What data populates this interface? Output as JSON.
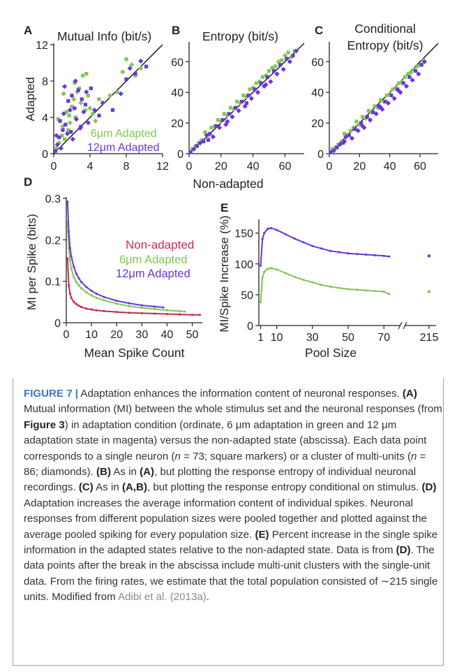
{
  "chart_data": [
    {
      "id": "A",
      "type": "scatter",
      "panel_label": "A",
      "title": "Mutual Info (bit/s)",
      "ylabel": "Adapted",
      "xlim": [
        0,
        12
      ],
      "ylim": [
        0,
        12
      ],
      "xticks": [
        "0",
        "4",
        "8",
        "12"
      ],
      "yticks": [
        "0",
        "4",
        "8",
        "12"
      ],
      "legend": [
        "6μm Adapted",
        "12μm Adapted"
      ],
      "legend_position": "bottom-right",
      "identity_line": true,
      "series": [
        {
          "name": "6μm Adapted",
          "color": "#7ec850",
          "x": [
            0.3,
            0.6,
            0.9,
            1.0,
            1.2,
            1.4,
            1.6,
            1.8,
            2.0,
            2.2,
            2.4,
            2.6,
            2.8,
            3.0,
            3.2,
            3.5,
            3.8,
            4.0,
            4.3,
            4.6,
            5.0,
            6.2,
            7.0,
            7.6,
            8.0,
            8.6,
            9.0,
            9.6,
            0.5,
            1.1,
            1.7,
            2.3,
            3.6
          ],
          "y": [
            0.6,
            1.2,
            2.0,
            3.0,
            1.6,
            4.6,
            2.6,
            3.4,
            5.2,
            6.0,
            4.0,
            6.8,
            7.2,
            5.6,
            8.6,
            4.8,
            6.4,
            5.0,
            4.4,
            3.6,
            6.0,
            6.4,
            6.8,
            9.0,
            10.4,
            9.8,
            8.6,
            9.4,
            3.8,
            6.6,
            4.2,
            7.8,
            8.8
          ]
        },
        {
          "name": "12μm Adapted",
          "color": "#6a35e0",
          "x": [
            0.2,
            0.4,
            0.6,
            0.8,
            1.0,
            1.1,
            1.3,
            1.5,
            1.6,
            1.8,
            2.0,
            2.1,
            2.3,
            2.5,
            2.7,
            2.9,
            3.1,
            3.3,
            3.5,
            3.8,
            4.1,
            4.5,
            5.0,
            5.4,
            6.5,
            7.4,
            8.0,
            8.4,
            9.0,
            9.6,
            10.2,
            0.3,
            0.7,
            1.2,
            1.9,
            2.4,
            3.0,
            3.6
          ],
          "y": [
            0.3,
            1.0,
            1.8,
            0.6,
            2.6,
            4.4,
            3.2,
            2.2,
            5.8,
            4.8,
            6.4,
            1.6,
            5.0,
            3.8,
            7.0,
            2.8,
            6.0,
            4.6,
            5.4,
            3.4,
            7.2,
            4.8,
            4.2,
            5.6,
            4.8,
            6.6,
            8.2,
            9.4,
            8.8,
            10.2,
            9.6,
            2.0,
            3.6,
            7.4,
            2.4,
            8.0,
            3.0,
            6.8
          ]
        }
      ]
    },
    {
      "id": "B",
      "type": "scatter",
      "panel_label": "B",
      "title": "Entropy (bit/s)",
      "xlabel": "Non-adapted",
      "xlim": [
        0,
        72
      ],
      "ylim": [
        0,
        72
      ],
      "xticks": [
        "0",
        "20",
        "40",
        "60"
      ],
      "yticks": [
        "0",
        "20",
        "40",
        "60"
      ],
      "identity_line": true,
      "series": [
        {
          "name": "6μm Adapted",
          "color": "#7ec850",
          "x": [
            2,
            4,
            6,
            8,
            10,
            12,
            14,
            16,
            18,
            20,
            22,
            24,
            26,
            28,
            30,
            32,
            34,
            36,
            38,
            40,
            42,
            44,
            46,
            48,
            50,
            52,
            54,
            56,
            58,
            60,
            62,
            64,
            66
          ],
          "y": [
            3,
            5,
            7,
            9,
            14,
            12,
            17,
            18,
            22,
            21,
            26,
            25,
            30,
            29,
            34,
            33,
            38,
            37,
            42,
            43,
            46,
            47,
            50,
            51,
            54,
            56,
            57,
            60,
            61,
            64,
            66,
            63,
            67
          ]
        },
        {
          "name": "12μm Adapted",
          "color": "#6a35e0",
          "x": [
            1,
            3,
            5,
            7,
            9,
            11,
            13,
            15,
            17,
            19,
            21,
            23,
            25,
            27,
            29,
            31,
            33,
            35,
            37,
            39,
            41,
            43,
            45,
            47,
            49,
            51,
            53,
            55,
            57,
            59,
            61,
            63,
            65,
            67,
            12,
            24,
            36,
            48
          ],
          "y": [
            1,
            3,
            5,
            7,
            8,
            12,
            13,
            11,
            18,
            17,
            22,
            19,
            26,
            24,
            30,
            28,
            34,
            31,
            38,
            36,
            42,
            40,
            46,
            44,
            50,
            47,
            54,
            52,
            58,
            55,
            62,
            60,
            64,
            67,
            9,
            21,
            33,
            45
          ]
        }
      ]
    },
    {
      "id": "C",
      "type": "scatter",
      "panel_label": "C",
      "title": "Conditional Entropy (bit/s)",
      "xlim": [
        0,
        72
      ],
      "ylim": [
        0,
        72
      ],
      "xticks": [
        "0",
        "20",
        "40",
        "60"
      ],
      "yticks": [
        "0",
        "20",
        "40",
        "60"
      ],
      "identity_line": true,
      "series": [
        {
          "name": "6μm Adapted",
          "color": "#7ec850",
          "x": [
            2,
            4,
            6,
            8,
            10,
            12,
            14,
            16,
            18,
            20,
            22,
            24,
            26,
            28,
            30,
            32,
            34,
            36,
            38,
            40,
            42,
            44,
            46,
            48,
            50,
            52,
            54,
            56,
            58,
            60,
            62
          ],
          "y": [
            3,
            4,
            6,
            8,
            13,
            12,
            15,
            17,
            21,
            19,
            24,
            23,
            28,
            27,
            31,
            30,
            35,
            34,
            38,
            39,
            42,
            43,
            46,
            47,
            50,
            52,
            53,
            55,
            57,
            58,
            61
          ]
        },
        {
          "name": "12μm Adapted",
          "color": "#6a35e0",
          "x": [
            1,
            3,
            5,
            7,
            9,
            11,
            13,
            15,
            17,
            19,
            21,
            23,
            25,
            27,
            29,
            31,
            33,
            35,
            37,
            39,
            41,
            43,
            45,
            47,
            49,
            51,
            53,
            55,
            57,
            59,
            61,
            63,
            10,
            22,
            34,
            46
          ],
          "y": [
            1,
            2,
            4,
            6,
            7,
            11,
            12,
            10,
            16,
            15,
            20,
            17,
            24,
            22,
            27,
            26,
            31,
            29,
            34,
            33,
            38,
            36,
            42,
            40,
            46,
            44,
            50,
            48,
            54,
            52,
            58,
            60,
            8,
            18,
            30,
            41
          ]
        }
      ]
    },
    {
      "id": "D",
      "type": "line",
      "panel_label": "D",
      "xlabel": "Mean Spike Count",
      "ylabel": "MI per Spike (bits)",
      "xlim": [
        0,
        54
      ],
      "ylim": [
        0,
        0.3
      ],
      "xticks": [
        "0",
        "10",
        "20",
        "30",
        "40",
        "50"
      ],
      "yticks": [
        "0",
        "0.1",
        "0.2",
        "0.3"
      ],
      "legend": [
        "Non-adapted",
        "6μm Adapted",
        "12μm Adapted"
      ],
      "legend_position": "right",
      "series": [
        {
          "name": "Non-adapted",
          "color": "#cc2a52",
          "x": [
            0.5,
            1,
            1.5,
            2,
            3,
            4,
            5,
            6,
            8,
            10,
            12,
            15,
            20,
            25,
            30,
            35,
            40,
            45,
            50,
            53
          ],
          "y": [
            0.155,
            0.09,
            0.07,
            0.06,
            0.05,
            0.045,
            0.041,
            0.038,
            0.034,
            0.032,
            0.03,
            0.028,
            0.026,
            0.024,
            0.023,
            0.022,
            0.021,
            0.02,
            0.019,
            0.019
          ]
        },
        {
          "name": "6μm Adapted",
          "color": "#7ec850",
          "x": [
            0.5,
            1,
            1.5,
            2,
            3,
            4,
            5,
            6,
            8,
            10,
            12,
            15,
            20,
            25,
            30,
            35,
            40,
            45,
            47
          ],
          "y": [
            0.245,
            0.18,
            0.15,
            0.13,
            0.11,
            0.098,
            0.09,
            0.083,
            0.073,
            0.066,
            0.06,
            0.054,
            0.046,
            0.04,
            0.036,
            0.033,
            0.03,
            0.028,
            0.027
          ]
        },
        {
          "name": "12μm Adapted",
          "color": "#6a35e0",
          "x": [
            0.5,
            1,
            1.5,
            2,
            3,
            4,
            5,
            6,
            8,
            10,
            12,
            15,
            20,
            25,
            30,
            35,
            38.5
          ],
          "y": [
            0.292,
            0.22,
            0.18,
            0.16,
            0.135,
            0.118,
            0.107,
            0.098,
            0.086,
            0.077,
            0.07,
            0.062,
            0.053,
            0.047,
            0.042,
            0.039,
            0.037
          ]
        }
      ]
    },
    {
      "id": "E",
      "type": "line",
      "panel_label": "E",
      "xlabel": "Pool Size",
      "ylabel": "MI/Spike Increase (%)",
      "xlim": [
        0,
        75
      ],
      "ylim": [
        0,
        170
      ],
      "xticks": [
        "1",
        "10",
        "30",
        "50",
        "70",
        "215"
      ],
      "yticks": [
        "0",
        "50",
        "100",
        "150"
      ],
      "axis_break": true,
      "series": [
        {
          "name": "12μm Adapted",
          "color": "#6a35e0",
          "x": [
            1,
            2,
            3,
            5,
            7,
            10,
            15,
            20,
            25,
            30,
            35,
            40,
            45,
            50,
            55,
            60,
            65,
            70,
            73,
            215
          ],
          "y": [
            97,
            140,
            150,
            157,
            158,
            155,
            148,
            141,
            135,
            129,
            125,
            121,
            119,
            117,
            116,
            115,
            114,
            113,
            112,
            113
          ]
        },
        {
          "name": "6μm Adapted",
          "color": "#7ec850",
          "x": [
            1,
            2,
            3,
            5,
            7,
            10,
            15,
            20,
            25,
            30,
            35,
            40,
            45,
            50,
            55,
            60,
            65,
            70,
            73,
            215
          ],
          "y": [
            38,
            78,
            87,
            92,
            93,
            91,
            85,
            79,
            74,
            70,
            66,
            63,
            61,
            59,
            58,
            57,
            56,
            55,
            51,
            55
          ]
        }
      ]
    }
  ],
  "caption": {
    "label": "FIGURE 7 |",
    "parts": [
      {
        "t": "n",
        "v": " Adaptation enhances the information content of neuronal responses. "
      },
      {
        "t": "b",
        "v": "(A)"
      },
      {
        "t": "n",
        "v": " Mutual information (MI) between the whole stimulus set and the neuronal responses (from "
      },
      {
        "t": "b",
        "v": "Figure 3"
      },
      {
        "t": "n",
        "v": ") in adaptation condition (ordinate, 6 μm adaptation in green and 12 μm adaptation state in magenta) versus the non-adapted state (abscissa). Each data point corresponds to a single neuron ("
      },
      {
        "t": "i",
        "v": "n"
      },
      {
        "t": "n",
        "v": " = 73; square markers) or a cluster of multi-units ("
      },
      {
        "t": "i",
        "v": "n"
      },
      {
        "t": "n",
        "v": " = 86; diamonds). "
      },
      {
        "t": "b",
        "v": "(B)"
      },
      {
        "t": "n",
        "v": " As in "
      },
      {
        "t": "b",
        "v": "(A)"
      },
      {
        "t": "n",
        "v": ", but plotting the response entropy of individual neuronal recordings. "
      },
      {
        "t": "b",
        "v": "(C)"
      },
      {
        "t": "n",
        "v": " As in "
      },
      {
        "t": "b",
        "v": "(A,B)"
      },
      {
        "t": "n",
        "v": ", but plotting the response entropy conditional on stimulus. "
      },
      {
        "t": "b",
        "v": "(D)"
      },
      {
        "t": "n",
        "v": " Adaptation increases the average information content of individual spikes. Neuronal responses from different population sizes were pooled together and plotted against the average pooled spiking for every population size. "
      },
      {
        "t": "b",
        "v": "(E)"
      },
      {
        "t": "n",
        "v": " Percent increase in the single spike information in the adapted states relative to the non-adapted state. Data is from "
      },
      {
        "t": "b",
        "v": "(D)"
      },
      {
        "t": "n",
        "v": ". The data points after the break in the abscissa include multi-unit clusters with the single-unit data. From the firing rates, we estimate that the total population consisted of ∼215 single units. Modified from "
      },
      {
        "t": "c",
        "v": "Adibi et al. (2013a)"
      },
      {
        "t": "n",
        "v": "."
      }
    ]
  }
}
